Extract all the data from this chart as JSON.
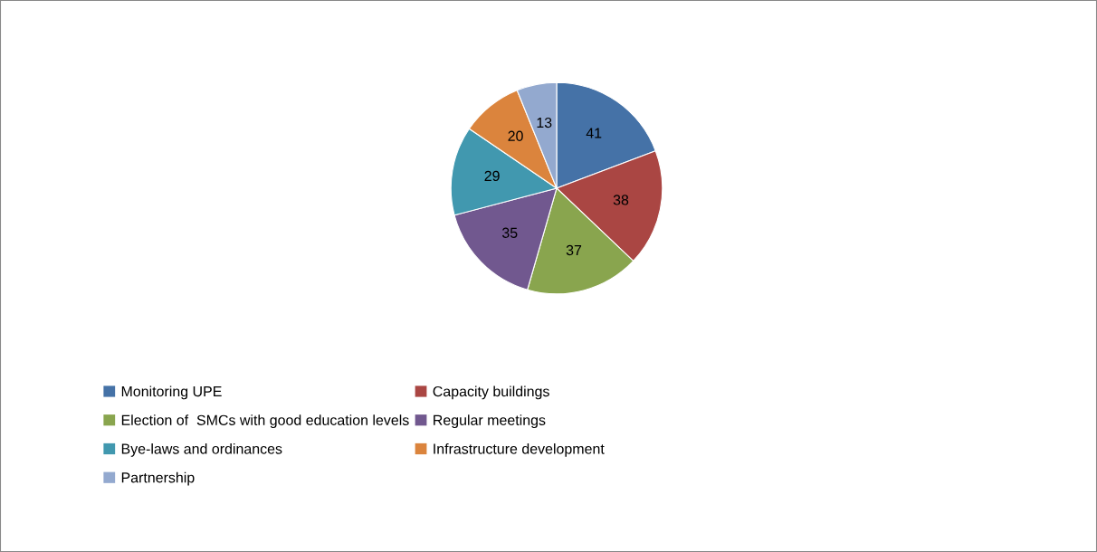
{
  "chart_data": {
    "type": "pie",
    "categories": [
      "Monitoring UPE",
      "Capacity buildings",
      "Election of  SMCs with good education levels",
      "Regular meetings",
      "Bye-laws and ordinances",
      "Infrastructure development",
      "Partnership"
    ],
    "values": [
      41,
      38,
      37,
      35,
      29,
      20,
      13
    ],
    "colors": [
      "#4572a7",
      "#aa4643",
      "#89a54e",
      "#71588f",
      "#4198af",
      "#db843d",
      "#93a9cf"
    ],
    "data_labels": true,
    "legend": "bottom"
  }
}
